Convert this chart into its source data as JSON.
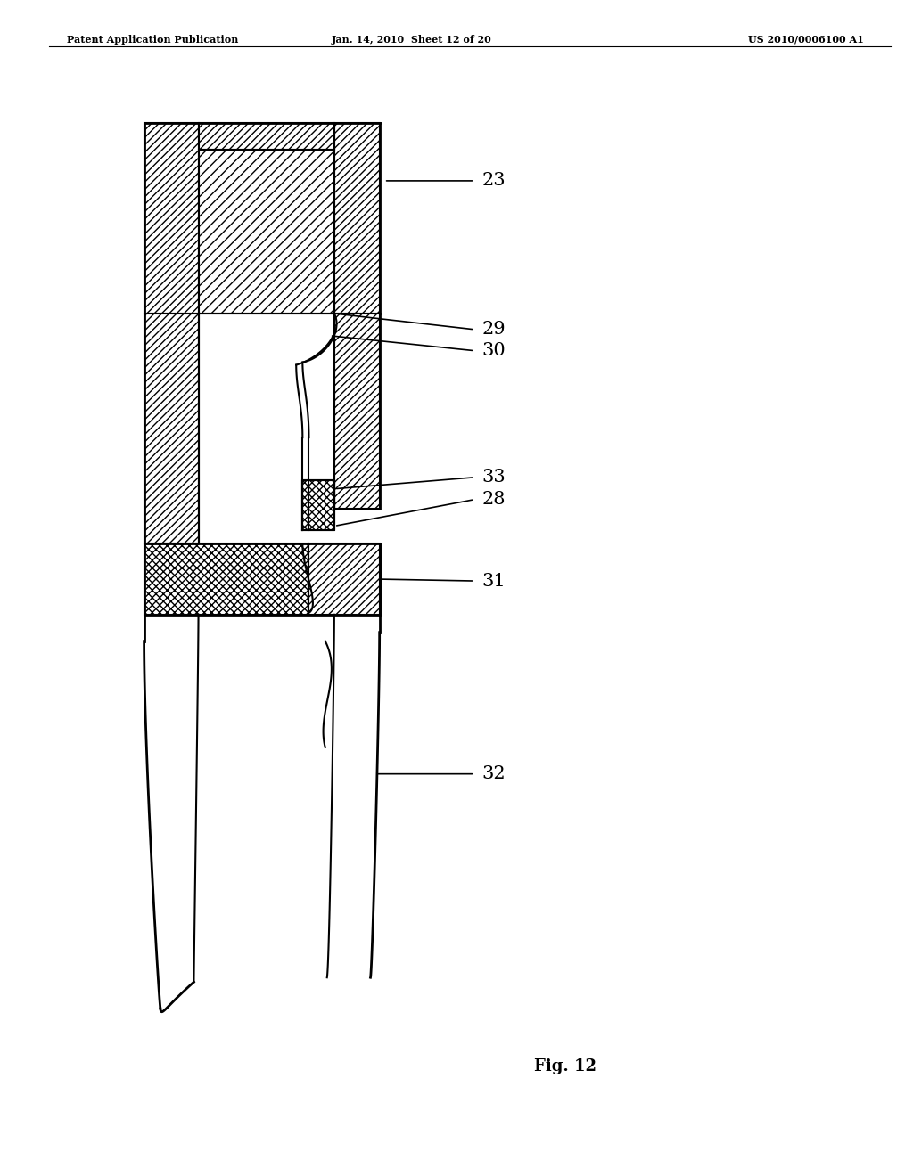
{
  "header_left": "Patent Application Publication",
  "header_center": "Jan. 14, 2010  Sheet 12 of 20",
  "header_right": "US 2010/0006100 A1",
  "fig_label": "Fig. 12",
  "bg_color": "#ffffff",
  "line_color": "#000000",
  "label_fontsize": 15
}
